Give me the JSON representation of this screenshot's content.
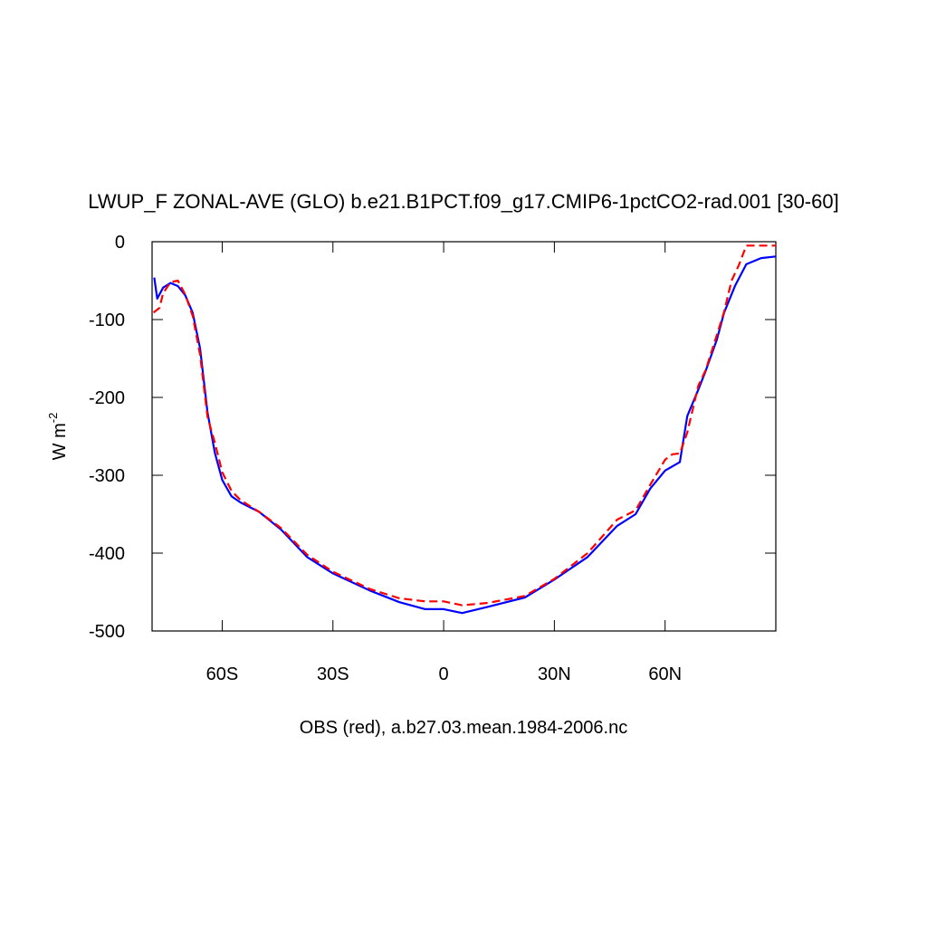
{
  "chart_data": {
    "type": "line",
    "title": "LWUP_F ZONAL-AVE (GLO) b.e21.B1PCT.f09_g17.CMIP6-1pctCO2-rad.001 [30-60]",
    "xlabel": "OBS (red), a.b27.03.mean.1984-2006.nc",
    "ylabel": "W m",
    "ylabel_superscript": "-2",
    "xlim": [
      -79,
      90
    ],
    "ylim": [
      -500,
      0
    ],
    "xticks": [
      {
        "value": -60,
        "label": "60S"
      },
      {
        "value": -30,
        "label": "30S"
      },
      {
        "value": 0,
        "label": "0"
      },
      {
        "value": 30,
        "label": "30N"
      },
      {
        "value": 60,
        "label": "60N"
      }
    ],
    "yticks": [
      0,
      -100,
      -200,
      -300,
      -400,
      -500
    ],
    "series": [
      {
        "color": "#0000ff",
        "dash": false,
        "x": [
          -78.4,
          -77.6,
          -76,
          -74,
          -72,
          -70,
          -68,
          -66,
          -64,
          -62,
          -60,
          -57.5,
          -55,
          -50,
          -44,
          -37,
          -30,
          -20,
          -12,
          -5,
          0,
          5,
          12,
          22,
          30,
          39,
          47,
          52,
          56,
          60,
          64,
          66,
          69,
          71,
          74,
          76,
          79,
          82,
          86,
          90
        ],
        "values": [
          -46,
          -73,
          -59,
          -53,
          -57,
          -69,
          -91,
          -137,
          -219,
          -271,
          -306,
          -327,
          -335,
          -347,
          -370,
          -405,
          -426,
          -448,
          -463,
          -472,
          -472,
          -477,
          -469,
          -457,
          -434,
          -405,
          -365,
          -350,
          -317,
          -294,
          -283,
          -224,
          -190,
          -166,
          -126,
          -91,
          -56,
          -29,
          -21,
          -19
        ]
      },
      {
        "color": "#ff0000",
        "dash": true,
        "x": [
          -78.6,
          -77,
          -76,
          -74,
          -72,
          -70,
          -68,
          -66,
          -64,
          -62,
          -60,
          -57.5,
          -55,
          -50,
          -44,
          -37,
          -30,
          -20,
          -12,
          -5,
          0,
          5,
          12,
          22,
          30,
          39,
          47,
          52,
          56,
          60,
          62,
          64,
          66,
          69,
          71,
          74,
          76,
          78,
          80,
          82,
          86,
          90
        ],
        "values": [
          -91,
          -85,
          -66,
          -52,
          -50,
          -68,
          -95,
          -145,
          -225,
          -258,
          -296,
          -320,
          -332,
          -347,
          -368,
          -402,
          -424,
          -446,
          -458,
          -462,
          -462,
          -467,
          -464,
          -455,
          -433,
          -400,
          -357,
          -345,
          -312,
          -280,
          -273,
          -272,
          -245,
          -185,
          -165,
          -120,
          -90,
          -50,
          -30,
          -5,
          -5,
          -5
        ]
      }
    ]
  }
}
